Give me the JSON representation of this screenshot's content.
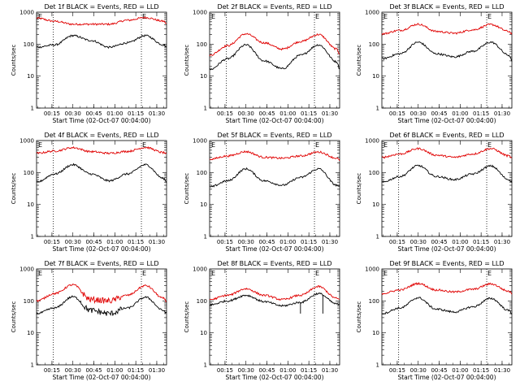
{
  "figure": {
    "x_ticks": [
      "00:15",
      "00:30",
      "00:45",
      "01:00",
      "01:15",
      "01:30"
    ],
    "y_ticks": [
      "1",
      "10",
      "100",
      "1000"
    ],
    "x_label": "Start Time (02-Oct-07 00:04:00)",
    "y_label": "Counts/sec",
    "event_markers": [
      "E",
      "E"
    ],
    "colors": {
      "events": "#000000",
      "lld": "#e00000",
      "axes": "#000000"
    }
  },
  "chart_data": [
    {
      "type": "line",
      "title": "Det 1f BLACK = Events, RED = LLD",
      "yscale": "log",
      "ylim": [
        1,
        1000
      ],
      "x": [
        "00:04",
        "00:17",
        "00:30",
        "00:43",
        "00:56",
        "01:09",
        "01:22",
        "01:35",
        "01:37"
      ],
      "xlabel": "Start Time (02-Oct-07 00:04:00)",
      "ylabel": "Counts/sec",
      "vlines": [
        "00:16",
        "01:19"
      ],
      "series": [
        {
          "values": [
            80,
            95,
            185,
            130,
            80,
            110,
            185,
            95,
            80
          ]
        },
        {
          "values": [
            650,
            520,
            420,
            420,
            420,
            560,
            680,
            520,
            430
          ]
        }
      ]
    },
    {
      "type": "line",
      "title": "Det 2f BLACK = Events, RED = LLD",
      "yscale": "log",
      "ylim": [
        1,
        1000
      ],
      "x": [
        "00:04",
        "00:17",
        "00:30",
        "00:43",
        "00:56",
        "01:09",
        "01:22",
        "01:35",
        "01:37"
      ],
      "xlabel": "Start Time (02-Oct-07 00:04:00)",
      "ylabel": "Counts/sec",
      "vlines": [
        "00:16",
        "01:19"
      ],
      "series": [
        {
          "values": [
            16,
            35,
            95,
            30,
            17,
            45,
            95,
            28,
            17
          ]
        },
        {
          "values": [
            45,
            90,
            210,
            110,
            70,
            120,
            200,
            70,
            50
          ]
        }
      ]
    },
    {
      "type": "line",
      "title": "Det 3f BLACK = Events, RED = LLD",
      "yscale": "log",
      "ylim": [
        1,
        1000
      ],
      "x": [
        "00:04",
        "00:17",
        "00:30",
        "00:43",
        "00:56",
        "01:09",
        "01:22",
        "01:35",
        "01:37"
      ],
      "xlabel": "Start Time (02-Oct-07 00:04:00)",
      "ylabel": "Counts/sec",
      "vlines": [
        "00:16",
        "01:19"
      ],
      "series": [
        {
          "values": [
            35,
            50,
            115,
            50,
            40,
            60,
            115,
            45,
            30
          ]
        },
        {
          "values": [
            210,
            270,
            420,
            250,
            220,
            280,
            410,
            250,
            210
          ]
        }
      ]
    },
    {
      "type": "line",
      "title": "Det 4f BLACK = Events, RED = LLD",
      "yscale": "log",
      "ylim": [
        1,
        1000
      ],
      "x": [
        "00:04",
        "00:17",
        "00:30",
        "00:43",
        "00:56",
        "01:09",
        "01:22",
        "01:35",
        "01:37"
      ],
      "xlabel": "Start Time (02-Oct-07 00:04:00)",
      "ylabel": "Counts/sec",
      "vlines": [
        "00:16",
        "01:19"
      ],
      "series": [
        {
          "values": [
            50,
            90,
            175,
            90,
            55,
            90,
            175,
            65,
            50
          ]
        },
        {
          "values": [
            400,
            470,
            600,
            450,
            400,
            460,
            610,
            420,
            380
          ]
        }
      ]
    },
    {
      "type": "line",
      "title": "Det 5f BLACK = Events, RED = LLD",
      "yscale": "log",
      "ylim": [
        1,
        1000
      ],
      "x": [
        "00:04",
        "00:17",
        "00:30",
        "00:43",
        "00:56",
        "01:09",
        "01:22",
        "01:35",
        "01:37"
      ],
      "xlabel": "Start Time (02-Oct-07 00:04:00)",
      "ylabel": "Counts/sec",
      "vlines": [
        "00:16",
        "01:19"
      ],
      "series": [
        {
          "values": [
            35,
            55,
            130,
            55,
            40,
            70,
            130,
            40,
            35
          ]
        },
        {
          "values": [
            260,
            330,
            450,
            300,
            280,
            330,
            440,
            280,
            240
          ]
        }
      ]
    },
    {
      "type": "line",
      "title": "Det 6f BLACK = Events, RED = LLD",
      "yscale": "log",
      "ylim": [
        1,
        1000
      ],
      "x": [
        "00:04",
        "00:17",
        "00:30",
        "00:43",
        "00:56",
        "01:09",
        "01:22",
        "01:35",
        "01:37"
      ],
      "xlabel": "Start Time (02-Oct-07 00:04:00)",
      "ylabel": "Counts/sec",
      "vlines": [
        "00:16",
        "01:19"
      ],
      "series": [
        {
          "values": [
            50,
            75,
            165,
            75,
            60,
            90,
            160,
            60,
            50
          ]
        },
        {
          "values": [
            300,
            380,
            560,
            350,
            300,
            380,
            560,
            330,
            280
          ]
        }
      ]
    },
    {
      "type": "line",
      "title": "Det 7f BLACK = Events, RED = LLD",
      "yscale": "log",
      "ylim": [
        1,
        1000
      ],
      "x": [
        "00:04",
        "00:17",
        "00:30",
        "00:43",
        "00:56",
        "01:09",
        "01:22",
        "01:35",
        "01:37"
      ],
      "xlabel": "Start Time (02-Oct-07 00:04:00)",
      "ylabel": "Counts/sec",
      "vlines": [
        "00:16",
        "01:19"
      ],
      "series": [
        {
          "values": [
            40,
            60,
            135,
            50,
            40,
            60,
            130,
            50,
            40
          ]
        },
        {
          "values": [
            100,
            170,
            320,
            110,
            100,
            150,
            300,
            120,
            95
          ]
        }
      ]
    },
    {
      "type": "line",
      "title": "Det 8f BLACK = Events, RED = LLD",
      "yscale": "log",
      "ylim": [
        1,
        1000
      ],
      "x": [
        "00:04",
        "00:17",
        "00:30",
        "00:43",
        "00:56",
        "01:09",
        "01:22",
        "01:35",
        "01:37"
      ],
      "xlabel": "Start Time (02-Oct-07 00:04:00)",
      "ylabel": "Counts/sec",
      "vlines": [
        "00:16",
        "01:19"
      ],
      "series": [
        {
          "values": [
            75,
            100,
            150,
            95,
            70,
            90,
            170,
            80,
            75
          ]
        },
        {
          "values": [
            110,
            150,
            240,
            150,
            110,
            150,
            280,
            120,
            110
          ]
        }
      ]
    },
    {
      "type": "line",
      "title": "Det 9f BLACK = Events, RED = LLD",
      "yscale": "log",
      "ylim": [
        1,
        1000
      ],
      "x": [
        "00:04",
        "00:17",
        "00:30",
        "00:43",
        "00:56",
        "01:09",
        "01:22",
        "01:35",
        "01:37"
      ],
      "xlabel": "Start Time (02-Oct-07 00:04:00)",
      "ylabel": "Counts/sec",
      "vlines": [
        "00:16",
        "01:19"
      ],
      "series": [
        {
          "values": [
            40,
            60,
            125,
            55,
            45,
            65,
            120,
            50,
            40
          ]
        },
        {
          "values": [
            170,
            220,
            350,
            220,
            190,
            230,
            340,
            200,
            170
          ]
        }
      ]
    }
  ]
}
